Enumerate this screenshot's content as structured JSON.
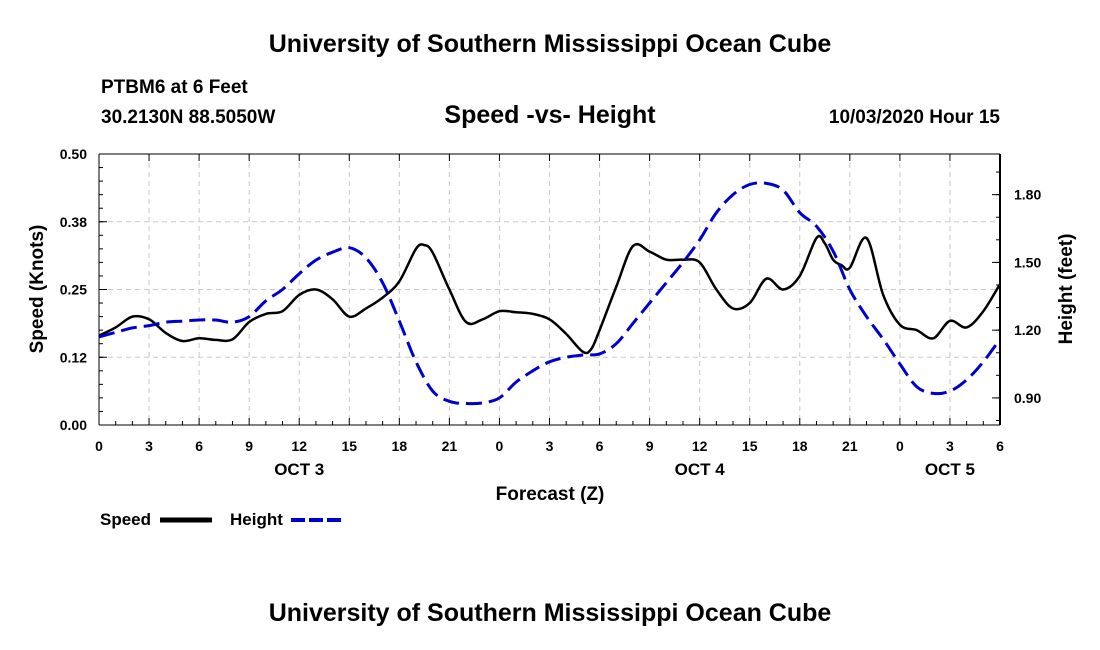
{
  "header": {
    "title": "University of Southern Mississippi Ocean Cube",
    "footer_title": "University of Southern Mississippi Ocean Cube",
    "station": "PTBM6 at 6 Feet",
    "coordinates": "30.2130N 88.5050W",
    "datetime": "10/03/2020 Hour 15"
  },
  "chart_data": {
    "type": "line",
    "title": "Speed -vs- Height",
    "xlabel": "Forecast (Z)",
    "ylabel": "Speed (Knots)",
    "y2label": "Height (feet)",
    "x_unit": "hours from 00Z Oct 3",
    "xlim": [
      0,
      54
    ],
    "ylim": [
      0,
      0.5
    ],
    "y2lim": [
      0.78,
      1.98
    ],
    "x_ticks": [
      0,
      3,
      6,
      9,
      12,
      15,
      18,
      21,
      24,
      27,
      30,
      33,
      36,
      39,
      42,
      45,
      48,
      51,
      54
    ],
    "x_tick_labels": [
      "0",
      "3",
      "6",
      "9",
      "12",
      "15",
      "18",
      "21",
      "0",
      "3",
      "6",
      "9",
      "12",
      "15",
      "18",
      "21",
      "0",
      "3",
      "6"
    ],
    "day_labels": [
      {
        "x": 12,
        "label": "OCT 3"
      },
      {
        "x": 36,
        "label": "OCT 4"
      },
      {
        "x": 51,
        "label": "OCT 5"
      }
    ],
    "y_ticks": [
      0,
      0.125,
      0.25,
      0.375,
      0.5
    ],
    "y_tick_labels": [
      "0.00",
      "0.12",
      "0.25",
      "0.38",
      "0.50"
    ],
    "y2_ticks": [
      0.9,
      1.2,
      1.5,
      1.8
    ],
    "y2_tick_labels": [
      "0.90",
      "1.20",
      "1.50",
      "1.80"
    ],
    "grid": true,
    "legend": [
      {
        "name": "Speed",
        "color": "#000000",
        "style": "solid"
      },
      {
        "name": "Height",
        "color": "#0000cc",
        "style": "dashed"
      }
    ],
    "series": [
      {
        "name": "Speed",
        "axis": "left",
        "color": "#000000",
        "x": [
          0,
          1,
          2,
          3,
          4,
          5,
          6,
          7,
          8,
          9,
          10,
          11,
          12,
          13,
          14,
          15,
          16,
          17,
          18,
          19,
          19.5,
          20,
          21,
          22,
          23,
          24,
          25,
          26,
          27,
          28,
          29,
          29.5,
          30,
          31,
          32,
          33,
          34,
          35,
          36,
          37,
          38,
          39,
          40,
          41,
          42,
          43,
          43.5,
          44,
          44.5,
          45,
          46,
          47,
          48,
          49,
          50,
          51,
          52,
          53,
          54
        ],
        "values": [
          0.165,
          0.18,
          0.2,
          0.195,
          0.17,
          0.155,
          0.16,
          0.157,
          0.158,
          0.19,
          0.205,
          0.21,
          0.24,
          0.25,
          0.232,
          0.2,
          0.215,
          0.235,
          0.265,
          0.325,
          0.332,
          0.318,
          0.25,
          0.19,
          0.195,
          0.21,
          0.208,
          0.205,
          0.195,
          0.168,
          0.135,
          0.14,
          0.175,
          0.255,
          0.33,
          0.32,
          0.305,
          0.305,
          0.3,
          0.25,
          0.215,
          0.225,
          0.27,
          0.25,
          0.275,
          0.345,
          0.335,
          0.305,
          0.295,
          0.29,
          0.345,
          0.24,
          0.185,
          0.175,
          0.16,
          0.192,
          0.18,
          0.21,
          0.26
        ]
      },
      {
        "name": "Height",
        "axis": "right",
        "color": "#0000cc",
        "x": [
          0,
          1,
          2,
          3,
          4,
          5,
          6,
          7,
          8,
          9,
          10,
          11,
          12,
          13,
          14,
          15,
          16,
          17,
          18,
          19,
          20,
          21,
          22,
          23,
          24,
          25,
          26,
          27,
          28,
          29,
          30,
          31,
          32,
          33,
          34,
          35,
          36,
          37,
          38,
          39,
          40,
          41,
          42,
          43,
          44,
          45,
          46,
          47,
          48,
          49,
          50,
          51,
          52,
          53,
          54
        ],
        "values": [
          1.17,
          1.19,
          1.21,
          1.22,
          1.235,
          1.24,
          1.245,
          1.245,
          1.235,
          1.26,
          1.33,
          1.38,
          1.45,
          1.51,
          1.545,
          1.565,
          1.52,
          1.41,
          1.24,
          1.06,
          0.93,
          0.885,
          0.875,
          0.878,
          0.9,
          0.97,
          1.02,
          1.06,
          1.08,
          1.09,
          1.095,
          1.14,
          1.23,
          1.32,
          1.41,
          1.5,
          1.6,
          1.72,
          1.8,
          1.845,
          1.85,
          1.82,
          1.72,
          1.66,
          1.55,
          1.38,
          1.26,
          1.16,
          1.05,
          0.95,
          0.92,
          0.93,
          0.98,
          1.06,
          1.16
        ]
      }
    ]
  }
}
